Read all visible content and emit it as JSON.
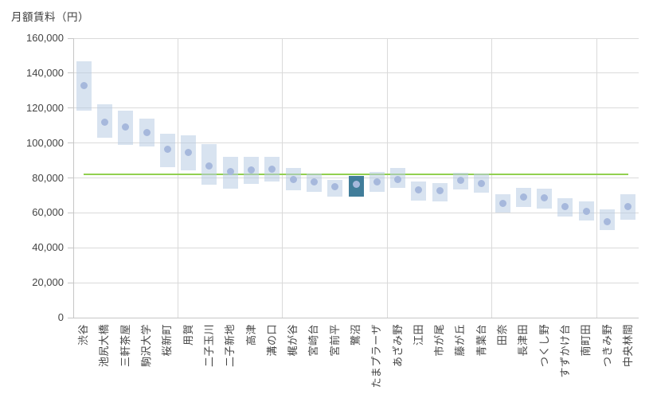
{
  "title": "月額賃料（円）",
  "chart_data": {
    "type": "bar",
    "subtype": "floating-range-bars-with-median-dots",
    "title": "月額賃料（円）",
    "xlabel": "",
    "ylabel": "月額賃料（円）",
    "ylim": [
      0,
      160000
    ],
    "ytick_step": 20000,
    "ytick_labels": [
      "0",
      "20,000",
      "40,000",
      "60,000",
      "80,000",
      "100,000",
      "120,000",
      "140,000",
      "160,000"
    ],
    "grid": true,
    "x_separator_every": 5,
    "legend": "none",
    "categories": [
      "渋谷",
      "池尻大橋",
      "三軒茶屋",
      "駒沢大学",
      "桜新町",
      "用賀",
      "二子玉川",
      "二子新地",
      "高津",
      "溝の口",
      "梶が谷",
      "宮崎台",
      "宮前平",
      "鷺沼",
      "たまプラーザ",
      "あざみ野",
      "江田",
      "市が尾",
      "藤が丘",
      "青葉台",
      "田奈",
      "長津田",
      "つくし野",
      "すずかけ台",
      "南町田",
      "つきみ野",
      "中央林間"
    ],
    "series": [
      {
        "name": "range-low",
        "values": [
          118500,
          103000,
          99000,
          98000,
          86000,
          84500,
          76000,
          74000,
          76500,
          78000,
          73000,
          72000,
          69500,
          69500,
          72000,
          74500,
          67000,
          66500,
          73500,
          71500,
          60000,
          63500,
          62500,
          58000,
          55500,
          50000,
          56000
        ]
      },
      {
        "name": "range-high",
        "values": [
          147000,
          122000,
          118500,
          114000,
          105500,
          104500,
          99500,
          92000,
          92000,
          92000,
          85500,
          82500,
          79000,
          81000,
          83500,
          85500,
          78000,
          77000,
          83000,
          82500,
          70500,
          74500,
          74000,
          68500,
          66500,
          62000,
          70500
        ]
      },
      {
        "name": "median-dot",
        "values": [
          133000,
          112000,
          109000,
          106000,
          96500,
          94500,
          87000,
          83500,
          84500,
          85000,
          79000,
          77500,
          75000,
          76500,
          77500,
          79000,
          73000,
          72500,
          78500,
          77000,
          65500,
          69000,
          68500,
          63500,
          61000,
          55000,
          63500
        ]
      }
    ],
    "reference_line_value": 82000,
    "highlight_category": "鷺沼",
    "highlight_index": 13,
    "colors": {
      "bar_fill": "rgba(184,204,228,0.55)",
      "highlight_bar_fill": "#417d9a",
      "dot_fill": "#a6b8dc",
      "reference_line": "#92d050",
      "gridline": "#dadada",
      "axis_line": "#c6c6c6",
      "text": "#404040"
    }
  }
}
